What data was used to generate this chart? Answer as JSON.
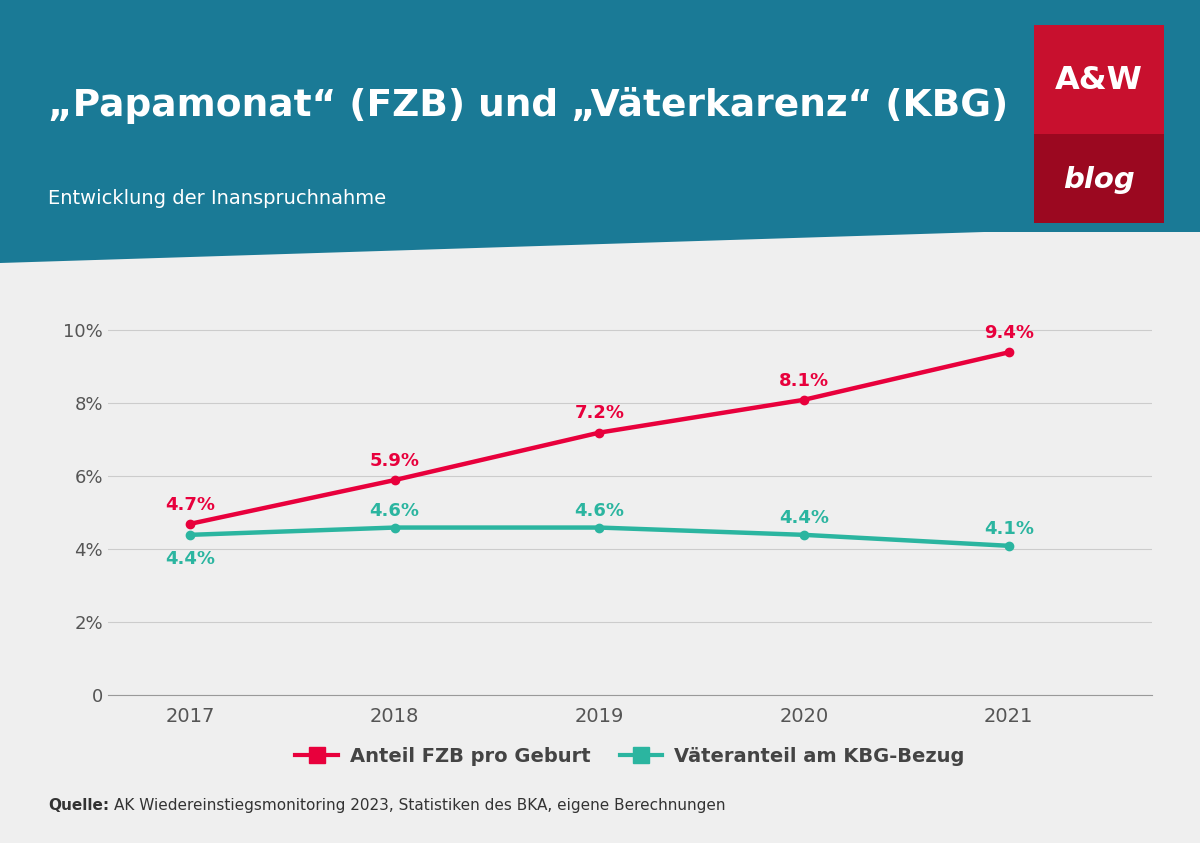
{
  "title": "„Papamonat“ (FZB) und „Väterkarenz“ (KBG)",
  "subtitle": "Entwicklung der Inanspruchnahme",
  "years": [
    2017,
    2018,
    2019,
    2020,
    2021
  ],
  "fzb_values": [
    4.7,
    5.9,
    7.2,
    8.1,
    9.4
  ],
  "kbg_values": [
    4.4,
    4.6,
    4.6,
    4.4,
    4.1
  ],
  "fzb_color": "#E8003C",
  "kbg_color": "#2BB5A0",
  "fzb_label": "Anteil FZB pro Geburt",
  "kbg_label": "Väteranteil am KBG-Bezug",
  "header_bg_color": "#1A7A96",
  "chart_bg_color": "#EFEFEF",
  "source_text": "AK Wiedereinstiegsmonitoring 2023, Statistiken des BKA, eigene Berechnungen",
  "source_bold": "Quelle:",
  "yticks": [
    0,
    2,
    4,
    6,
    8,
    10
  ],
  "ytick_labels": [
    "0",
    "2%",
    "4%",
    "6%",
    "8%",
    "10%"
  ],
  "aw_logo_bg": "#C8102E",
  "aw_logo_dark": "#9B0820",
  "line_width": 3.2,
  "marker_size": 6,
  "fzb_label_offsets": [
    0.28,
    0.28,
    0.28,
    0.28,
    0.28
  ],
  "kbg_label_dy": [
    -0.42,
    0.22,
    0.22,
    0.22,
    0.22
  ],
  "kbg_label_va": [
    "top",
    "bottom",
    "bottom",
    "bottom",
    "bottom"
  ]
}
